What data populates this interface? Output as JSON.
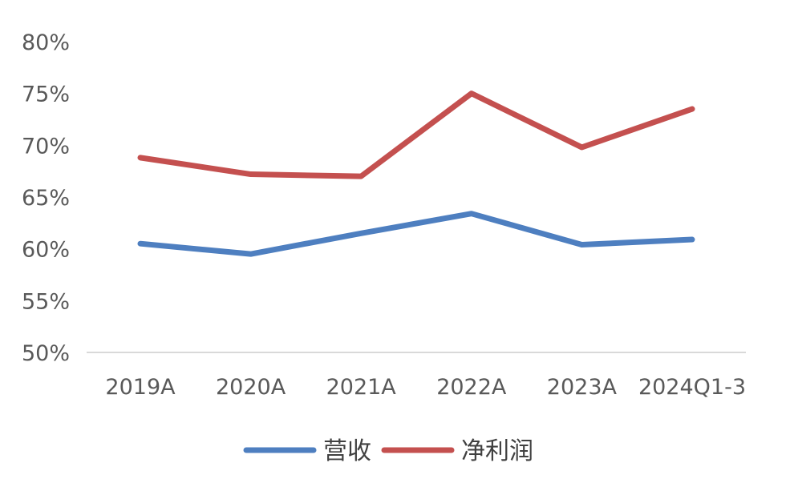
{
  "chart_data": {
    "type": "line",
    "categories": [
      "2019A",
      "2020A",
      "2021A",
      "2022A",
      "2023A",
      "2024Q1-3"
    ],
    "series": [
      {
        "name": "营收",
        "color": "#4e7fc0",
        "values": [
          60.5,
          59.5,
          61.5,
          63.4,
          60.4,
          60.9
        ]
      },
      {
        "name": "净利润",
        "color": "#c4504f",
        "values": [
          68.8,
          67.2,
          67.0,
          75.0,
          69.8,
          73.5
        ]
      }
    ],
    "ylim": [
      50,
      80
    ],
    "yticks": [
      "50%",
      "55%",
      "60%",
      "65%",
      "70%",
      "75%",
      "80%"
    ],
    "grid": false,
    "legend_position": "bottom"
  }
}
